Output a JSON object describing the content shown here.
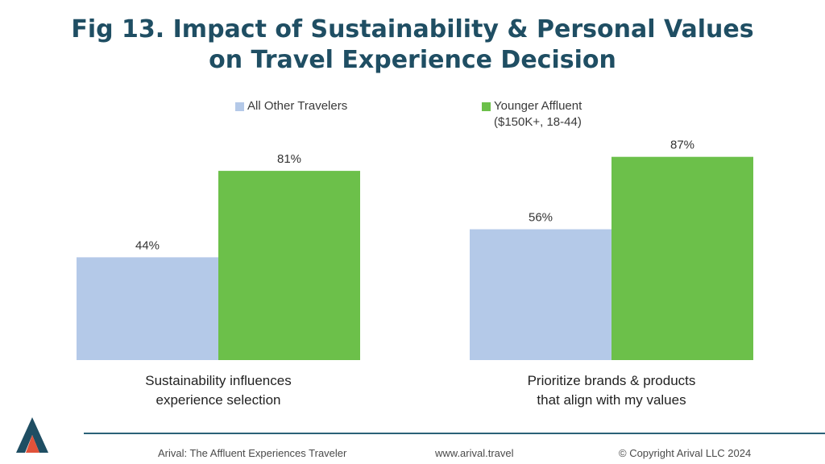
{
  "title": {
    "line1": "Fig 13. Impact of Sustainability & Personal Values",
    "line2": "on Travel Experience Decision"
  },
  "legend": [
    {
      "lines": [
        "All Other Travelers"
      ],
      "color": "#b4c9e8"
    },
    {
      "lines": [
        "Younger Affluent",
        "($150K+, 18-44)"
      ],
      "color": "#6cc04a"
    }
  ],
  "chart_data": {
    "type": "bar",
    "categories": [
      [
        "Sustainability influences",
        "experience selection"
      ],
      [
        "Prioritize brands & products",
        "that align with my values"
      ]
    ],
    "series": [
      {
        "name": "All Other Travelers",
        "values": [
          44,
          56
        ],
        "labels": [
          "44%",
          "56%"
        ],
        "color": "#b4c9e8"
      },
      {
        "name": "Younger Affluent ($150K+, 18-44)",
        "values": [
          81,
          87
        ],
        "labels": [
          "81%",
          "87%"
        ],
        "color": "#6cc04a"
      }
    ],
    "ylim": [
      0,
      100
    ],
    "grid": false,
    "legend_position": "top"
  },
  "footer": {
    "left": "Arival: The Affluent Experiences Traveler",
    "center": "www.arival.travel",
    "right": "© Copyright Arival LLC 2024"
  },
  "logo": {
    "letter": "A",
    "colors": [
      "#1f4e63",
      "#e0523a"
    ]
  }
}
